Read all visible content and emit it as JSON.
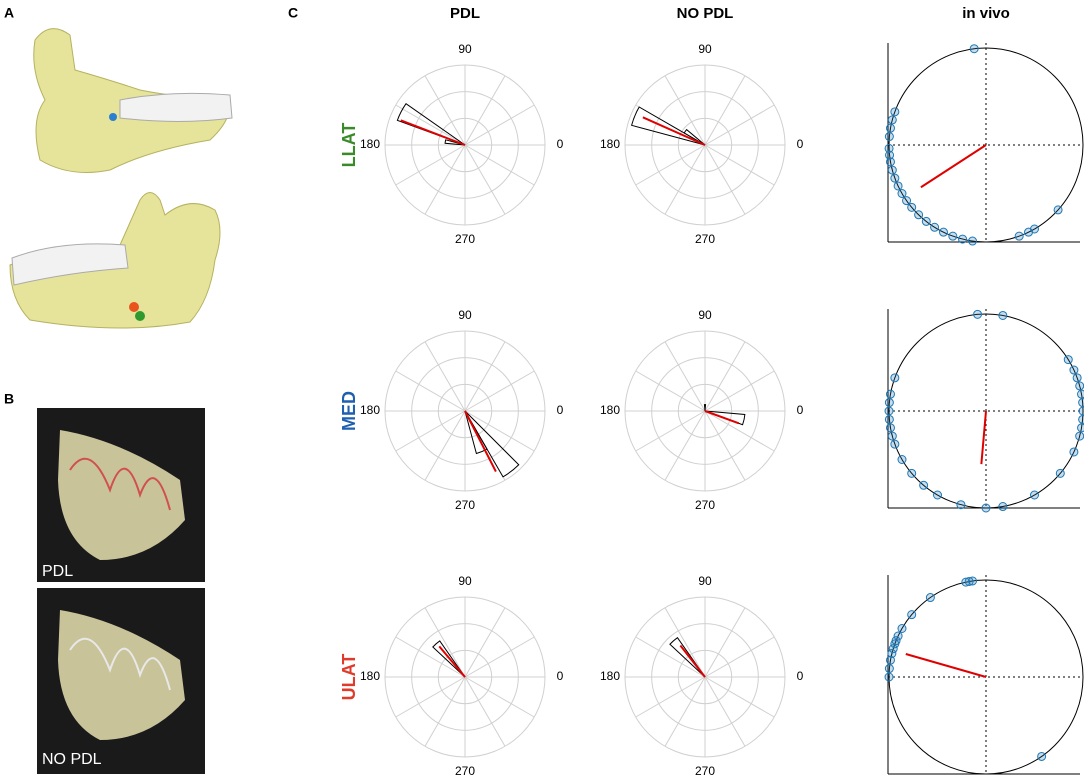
{
  "panels": [
    "A",
    "B",
    "C"
  ],
  "images": [
    "PDL",
    "NO PDL"
  ],
  "columns": [
    "PDL",
    "NO PDL",
    "in vivo"
  ],
  "rows": [
    "LLAT",
    "MED",
    "ULAT"
  ],
  "row_colors": [
    "#3a8a2a",
    "#1f5fb0",
    "#e03a2a"
  ],
  "polar_ticks": [
    90,
    180,
    0,
    270
  ],
  "rose": [
    [
      {
        "wedges": [
          [
            145,
            160,
            0.9
          ],
          [
            165,
            175,
            0.25
          ]
        ],
        "mean": [
          159,
          0.86
        ]
      },
      {
        "wedges": [
          [
            150,
            165,
            0.95
          ],
          [
            140,
            150,
            0.3
          ]
        ],
        "mean": [
          156,
          0.85
        ]
      }
    ],
    [
      {
        "wedges": [
          [
            300,
            315,
            0.95
          ],
          [
            285,
            300,
            0.55
          ]
        ],
        "mean": [
          297,
          0.85
        ]
      },
      {
        "wedges": [
          [
            340,
            355,
            0.5
          ],
          [
            85,
            95,
            0.08
          ]
        ],
        "mean": [
          340,
          0.45
        ]
      }
    ],
    [
      {
        "wedges": [
          [
            125,
            137,
            0.55
          ]
        ],
        "mean": [
          130,
          0.5
        ]
      },
      {
        "wedges": [
          [
            125,
            137,
            0.6
          ]
        ],
        "mean": [
          128,
          0.5
        ]
      }
    ]
  ],
  "in_vivo": [
    {
      "points": [
        97,
        160,
        165,
        170,
        175,
        182,
        186,
        190,
        195,
        200,
        205,
        210,
        215,
        220,
        226,
        232,
        238,
        244,
        250,
        256,
        262,
        290,
        296,
        300,
        318
      ],
      "mean": [
        213,
        0.8
      ]
    },
    {
      "points": [
        0,
        5,
        10,
        15,
        20,
        25,
        32,
        80,
        95,
        160,
        170,
        175,
        180,
        185,
        190,
        195,
        200,
        210,
        220,
        230,
        240,
        255,
        270,
        280,
        300,
        320,
        335,
        345,
        350,
        355
      ],
      "mean": [
        265,
        0.55
      ]
    },
    {
      "points": [
        98,
        100,
        102,
        125,
        140,
        150,
        155,
        158,
        160,
        163,
        166,
        170,
        175,
        180,
        305
      ],
      "mean": [
        164,
        0.86
      ]
    }
  ]
}
